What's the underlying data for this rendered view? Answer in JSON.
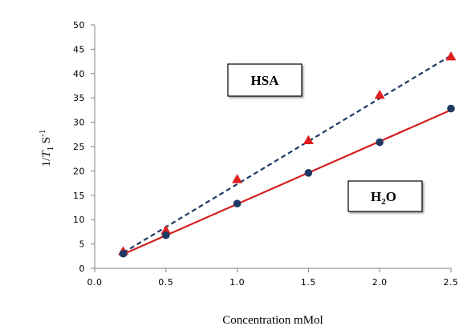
{
  "chart_data": {
    "type": "scatter",
    "xlabel": "Concentration mMol",
    "ylabel": {
      "prefix": "1/",
      "var": "T",
      "sub": "1",
      "unit": " S",
      "sup": "-1"
    },
    "xlim": [
      0.0,
      2.5
    ],
    "ylim": [
      0,
      50
    ],
    "xticks": [
      0.0,
      0.5,
      1.0,
      1.5,
      2.0,
      2.5
    ],
    "yticks": [
      0,
      5,
      10,
      15,
      20,
      25,
      30,
      35,
      40,
      45,
      50
    ],
    "grid": false,
    "series": [
      {
        "name": "HSA",
        "marker": "triangle",
        "marker_color": "#e02020",
        "line_color": "#1f3864",
        "line_style": "dashed",
        "x": [
          0.2,
          0.5,
          1.0,
          1.5,
          2.0,
          2.5
        ],
        "y": [
          3.5,
          7.8,
          18.3,
          26.3,
          35.6,
          43.5
        ],
        "fit": [
          [
            0.2,
            3.2
          ],
          [
            2.5,
            43.7
          ]
        ]
      },
      {
        "name": "H2O",
        "marker": "circle",
        "marker_color": "#1f3864",
        "line_color": "#d42020",
        "line_style": "solid",
        "x": [
          0.2,
          0.5,
          1.0,
          1.5,
          2.0,
          2.5
        ],
        "y": [
          3.0,
          6.8,
          13.3,
          19.6,
          25.9,
          32.8
        ],
        "fit": [
          [
            0.2,
            2.9
          ],
          [
            2.5,
            32.5
          ]
        ]
      }
    ],
    "annotations": [
      {
        "text_main": "HSA",
        "text_sub": "",
        "text_tail": ""
      },
      {
        "text_main": "H",
        "text_sub": "2",
        "text_tail": "O"
      }
    ]
  }
}
